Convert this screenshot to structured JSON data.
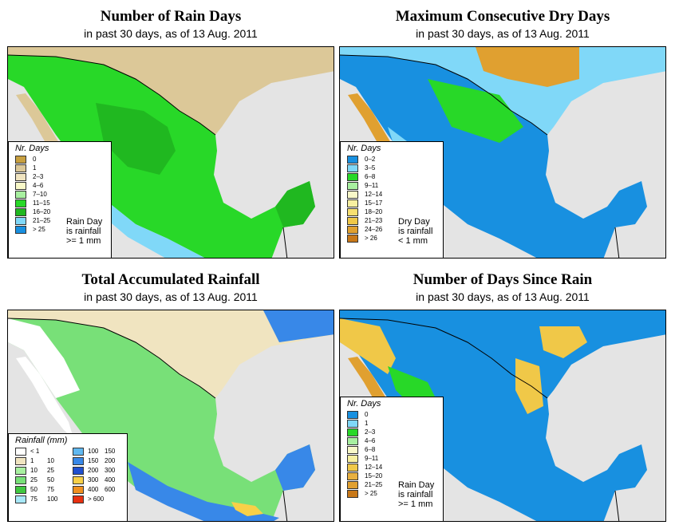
{
  "panels": [
    {
      "title": "Number of Rain Days",
      "subtitle": "in past 30 days, as of  13 Aug. 2011",
      "legend_title": "Nr. Days",
      "legend": [
        {
          "label": "0",
          "color": "#c8a040"
        },
        {
          "label": "1",
          "color": "#dcc898"
        },
        {
          "label": "2–3",
          "color": "#f0e4c0"
        },
        {
          "label": "4–6",
          "color": "#f8f8c8"
        },
        {
          "label": "7–10",
          "color": "#a8f0a0"
        },
        {
          "label": "11–15",
          "color": "#28d828"
        },
        {
          "label": "16–20",
          "color": "#20b820"
        },
        {
          "label": "21–25",
          "color": "#80d8f8"
        },
        {
          "label": "> 25",
          "color": "#1890e0"
        }
      ],
      "note": "Rain Day\nis rainfall\n>= 1 mm"
    },
    {
      "title": "Maximum Consecutive Dry Days",
      "subtitle": "in past 30 days, as of  13 Aug. 2011",
      "legend_title": "Nr. Days",
      "legend": [
        {
          "label": "0–2",
          "color": "#1890e0"
        },
        {
          "label": "3–5",
          "color": "#80d8f8"
        },
        {
          "label": "6–8",
          "color": "#28d828"
        },
        {
          "label": "9–11",
          "color": "#a8f0a0"
        },
        {
          "label": "12–14",
          "color": "#f8f8c8"
        },
        {
          "label": "15–17",
          "color": "#f8f0a0"
        },
        {
          "label": "18–20",
          "color": "#f8e070"
        },
        {
          "label": "21–23",
          "color": "#f0c848"
        },
        {
          "label": "24–26",
          "color": "#e0a030"
        },
        {
          "label": "> 26",
          "color": "#c87818"
        }
      ],
      "note": "Dry Day\nis rainfall\n< 1 mm"
    },
    {
      "title": "Total Accumulated Rainfall",
      "subtitle": "in past 30 days, as of  13 Aug. 2011",
      "legend_title": "Rainfall (mm)",
      "legend_left": [
        {
          "a": "< 1",
          "b": "",
          "color": "#ffffff"
        },
        {
          "a": "1",
          "b": "10",
          "color": "#f0e4c0"
        },
        {
          "a": "10",
          "b": "25",
          "color": "#a8f0a0"
        },
        {
          "a": "25",
          "b": "50",
          "color": "#78e078"
        },
        {
          "a": "50",
          "b": "75",
          "color": "#40c840"
        },
        {
          "a": "75",
          "b": "100",
          "color": "#a8e8f8"
        }
      ],
      "legend_right": [
        {
          "a": "100",
          "b": "150",
          "color": "#60b8f0"
        },
        {
          "a": "150",
          "b": "200",
          "color": "#3888e8"
        },
        {
          "a": "200",
          "b": "300",
          "color": "#2050d0"
        },
        {
          "a": "300",
          "b": "400",
          "color": "#f8d048"
        },
        {
          "a": "400",
          "b": "600",
          "color": "#f09020"
        },
        {
          "a": "> 600",
          "b": "",
          "color": "#e83010"
        }
      ]
    },
    {
      "title": "Number of Days Since Rain",
      "subtitle": "in past 30 days, as of  13 Aug. 2011",
      "legend_title": "Nr. Days",
      "legend": [
        {
          "label": "0",
          "color": "#1890e0"
        },
        {
          "label": "1",
          "color": "#80d8f8"
        },
        {
          "label": "2–3",
          "color": "#28d828"
        },
        {
          "label": "4–6",
          "color": "#a8f0a0"
        },
        {
          "label": "6–8",
          "color": "#f8f8c8"
        },
        {
          "label": "9–11",
          "color": "#f8f0a0"
        },
        {
          "label": "12–14",
          "color": "#f0c848"
        },
        {
          "label": "15–20",
          "color": "#e8b040"
        },
        {
          "label": "21–25",
          "color": "#e0a030"
        },
        {
          "label": "> 25",
          "color": "#c87818"
        }
      ],
      "note": "Rain Day\nis rainfall\n>= 1 mm"
    }
  ]
}
